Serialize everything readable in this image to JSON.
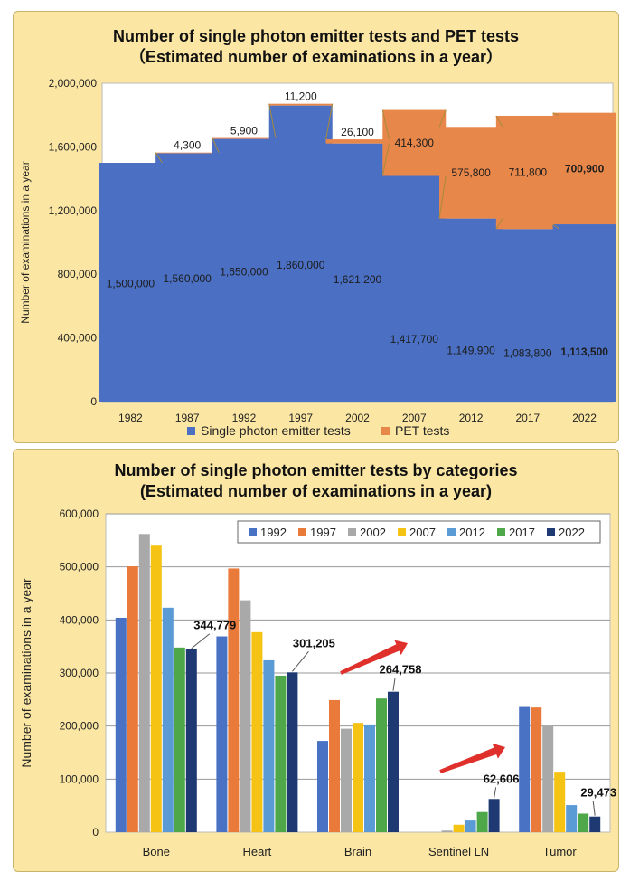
{
  "chart_data": [
    {
      "type": "bar",
      "stacked": true,
      "title": "Number of single photon emitter tests and PET tests",
      "subtitle": "（Estimated number of examinations in a year）",
      "xlabel": "",
      "ylabel": "Number of examinations in a year",
      "ylim": [
        0,
        2000000
      ],
      "yticks": [
        "0",
        "400,000",
        "800,000",
        "1,200,000",
        "1,600,000",
        "2,000,000"
      ],
      "categories": [
        "1982",
        "1987",
        "1992",
        "1997",
        "2002",
        "2007",
        "2012",
        "2017",
        "2022"
      ],
      "series": [
        {
          "name": "Single photon emitter tests",
          "color": "#4a6fc3",
          "values": [
            1500000,
            1560000,
            1650000,
            1860000,
            1621200,
            1417700,
            1149900,
            1083800,
            1113500
          ]
        },
        {
          "name": "PET tests",
          "color": "#e8874a",
          "values": [
            0,
            4300,
            5900,
            11200,
            26100,
            414300,
            575800,
            711800,
            700900
          ]
        }
      ],
      "spect_labels": [
        "1,500,000",
        "1,560,000",
        "1,650,000",
        "1,860,000",
        "1,621,200",
        "1,417,700",
        "1,149,900",
        "1,083,800",
        "1,113,500"
      ],
      "pet_labels": [
        "",
        "4,300",
        "5,900",
        "11,200",
        "26,100",
        "414,300",
        "575,800",
        "711,800",
        "700,900"
      ],
      "legend": "bottom"
    },
    {
      "type": "bar",
      "title": "Number of single photon emitter tests by categories",
      "subtitle": "(Estimated number of examinations in a year)",
      "xlabel": "",
      "ylabel": "Number of examinations in a year",
      "ylim": [
        0,
        600000
      ],
      "yticks": [
        "0",
        "100,000",
        "200,000",
        "300,000",
        "400,000",
        "500,000",
        "600,000"
      ],
      "categories": [
        "Bone",
        "Heart",
        "Brain",
        "Sentinel LN",
        "Tumor"
      ],
      "series": [
        {
          "name": "1992",
          "color": "#4a72c4",
          "values": [
            404000,
            369000,
            172000,
            0,
            236000
          ]
        },
        {
          "name": "1997",
          "color": "#ea7a3a",
          "values": [
            501000,
            497000,
            249000,
            0,
            235000
          ]
        },
        {
          "name": "2002",
          "color": "#a9a9a9",
          "values": [
            562000,
            437000,
            195000,
            3000,
            200000
          ]
        },
        {
          "name": "2007",
          "color": "#f5c314",
          "values": [
            540000,
            377000,
            206000,
            14000,
            114000
          ]
        },
        {
          "name": "2012",
          "color": "#5b9bd5",
          "values": [
            423000,
            324000,
            203000,
            22000,
            51000
          ]
        },
        {
          "name": "2017",
          "color": "#4ea84a",
          "values": [
            348000,
            295000,
            252000,
            38000,
            35000
          ]
        },
        {
          "name": "2022",
          "color": "#1f3a73",
          "values": [
            344779,
            301205,
            264758,
            62606,
            29473
          ]
        }
      ],
      "annotations": [
        "344,779",
        "301,205",
        "264,758",
        "62,606",
        "29,473"
      ],
      "legend": "top-right",
      "grid": true
    }
  ]
}
